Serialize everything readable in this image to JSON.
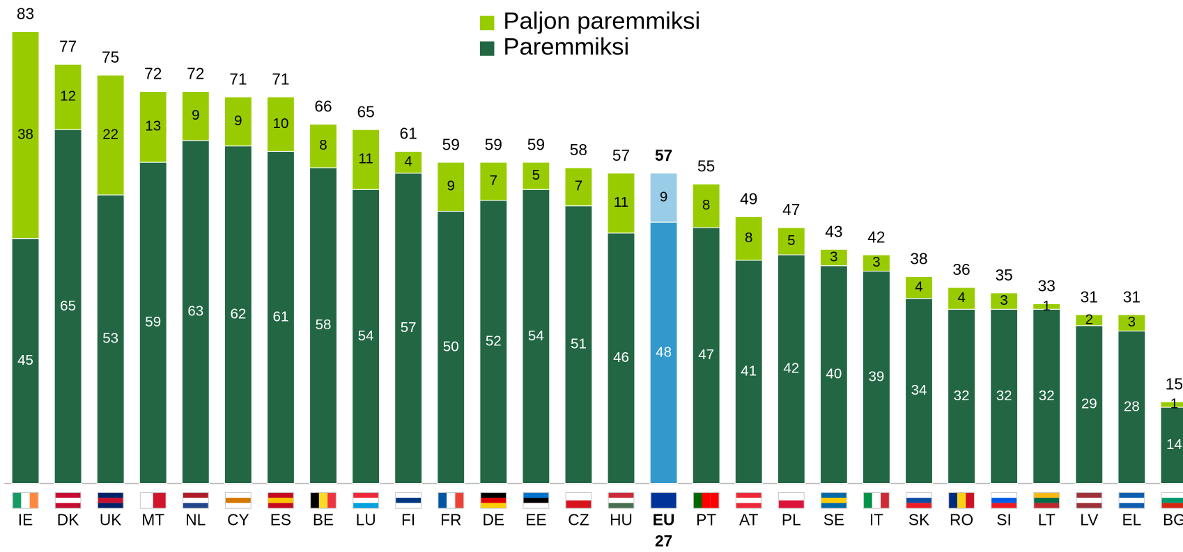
{
  "chart_data": {
    "type": "stacked_bar",
    "categories": [
      "IE",
      "DK",
      "UK",
      "MT",
      "NL",
      "CY",
      "ES",
      "BE",
      "LU",
      "FI",
      "FR",
      "DE",
      "EE",
      "CZ",
      "HU",
      "EU 27",
      "PT",
      "AT",
      "PL",
      "SE",
      "IT",
      "SK",
      "RO",
      "SI",
      "LT",
      "LV",
      "EL",
      "BG"
    ],
    "series": [
      {
        "name": "Paljon paremmiksi",
        "color": "#99cc00",
        "values": [
          38,
          12,
          22,
          13,
          9,
          9,
          10,
          8,
          11,
          4,
          9,
          7,
          5,
          7,
          11,
          9,
          8,
          8,
          5,
          3,
          3,
          4,
          4,
          3,
          1,
          2,
          3,
          1
        ]
      },
      {
        "name": "Paremmiksi",
        "color": "#226644",
        "values": [
          45,
          65,
          53,
          59,
          63,
          62,
          61,
          58,
          54,
          57,
          50,
          52,
          54,
          51,
          46,
          48,
          47,
          41,
          42,
          40,
          39,
          34,
          32,
          32,
          32,
          29,
          28,
          14
        ]
      }
    ],
    "totals": [
      83,
      77,
      75,
      72,
      72,
      71,
      71,
      66,
      65,
      61,
      59,
      59,
      59,
      58,
      57,
      57,
      55,
      49,
      47,
      43,
      42,
      38,
      36,
      35,
      33,
      31,
      31,
      15
    ],
    "highlight_index": 15,
    "highlight_colors": [
      "#99cce6",
      "#3399cc"
    ],
    "ylim": [
      0,
      85
    ],
    "legend": "top"
  }
}
